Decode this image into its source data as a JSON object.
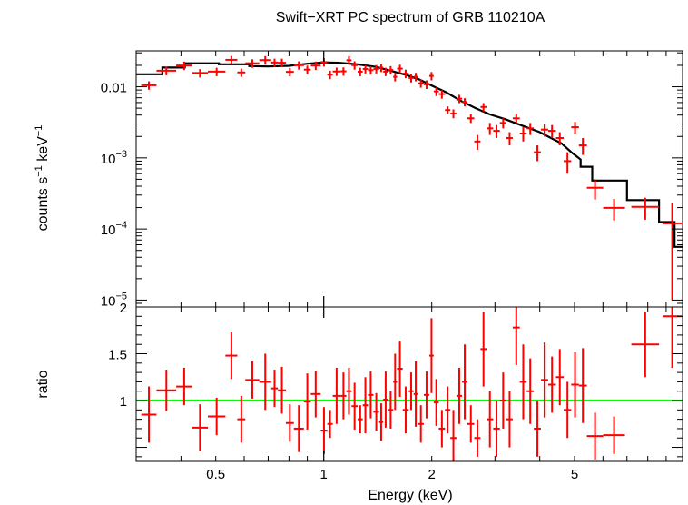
{
  "chart_data": {
    "type": "scatter",
    "title": "Swift−XRT PC spectrum of GRB 110210A",
    "xlabel": "Energy (keV)",
    "x_scale": "log",
    "xlim": [
      0.3,
      10
    ],
    "x_ticks": [
      {
        "value": 0.5,
        "label": "0.5"
      },
      {
        "value": 1,
        "label": "1"
      },
      {
        "value": 2,
        "label": "2"
      },
      {
        "value": 5,
        "label": "5"
      }
    ],
    "colors": {
      "data": "#ff0000",
      "model": "#000000",
      "unity": "#00ff00"
    },
    "panels": [
      {
        "name": "spectrum",
        "ylabel_parts": [
          {
            "text": "counts s",
            "sup": false
          },
          {
            "text": "−1",
            "sup": true
          },
          {
            "text": " keV",
            "sup": false
          },
          {
            "text": "−1",
            "sup": true
          }
        ],
        "y_scale": "log",
        "ylim": [
          8e-06,
          0.032
        ],
        "y_ticks": [
          {
            "value": 0.01,
            "base": "0.01",
            "exp": ""
          },
          {
            "value": 0.001,
            "base": "10",
            "exp": "−3"
          },
          {
            "value": 0.0001,
            "base": "10",
            "exp": "−4"
          },
          {
            "value": 1e-05,
            "base": "10",
            "exp": "−5"
          }
        ],
        "data": [
          [
            0.31,
            0.3419,
            0.0105,
            0.0014
          ],
          [
            0.3419,
            0.3879,
            0.0168,
            0.0023
          ],
          [
            0.3879,
            0.4297,
            0.0199,
            0.0027
          ],
          [
            0.4297,
            0.4753,
            0.0156,
            0.0021
          ],
          [
            0.4753,
            0.532,
            0.0163,
            0.0022
          ],
          [
            0.532,
            0.5742,
            0.0239,
            0.0032
          ],
          [
            0.5742,
            0.6044,
            0.0159,
            0.0021
          ],
          [
            0.6044,
            0.6612,
            0.0214,
            0.0029
          ],
          [
            0.6612,
            0.7137,
            0.0237,
            0.0032
          ],
          [
            0.7137,
            0.745,
            0.0219,
            0.0029
          ],
          [
            0.745,
            0.7841,
            0.0218,
            0.003
          ],
          [
            0.7841,
            0.8253,
            0.0162,
            0.0022
          ],
          [
            0.8253,
            0.8801,
            0.0201,
            0.0027
          ],
          [
            0.8801,
            0.92,
            0.0174,
            0.0024
          ],
          [
            0.92,
            0.9802,
            0.0199,
            0.0027
          ],
          [
            0.9802,
            1.0232,
            0.0222,
            0.003
          ],
          [
            1.0232,
            1.0593,
            0.0148,
            0.002
          ],
          [
            1.0593,
            1.1137,
            0.0164,
            0.0022
          ],
          [
            1.1137,
            1.1561,
            0.0165,
            0.0022
          ],
          [
            1.1561,
            1.195,
            0.0236,
            0.0032
          ],
          [
            1.195,
            1.243,
            0.0201,
            0.0027
          ],
          [
            1.243,
            1.2844,
            0.0163,
            0.0022
          ],
          [
            1.2844,
            1.3283,
            0.0178,
            0.0024
          ],
          [
            1.3283,
            1.3755,
            0.0171,
            0.0023
          ],
          [
            1.3755,
            1.4266,
            0.0178,
            0.0024
          ],
          [
            1.4266,
            1.4646,
            0.0186,
            0.0025
          ],
          [
            1.4646,
            1.5114,
            0.0163,
            0.0022
          ],
          [
            1.5114,
            1.5612,
            0.0172,
            0.0023
          ],
          [
            1.5612,
            1.6008,
            0.0138,
            0.0019
          ],
          [
            1.6008,
            1.6596,
            0.018,
            0.0024
          ],
          [
            1.6596,
            1.7247,
            0.0153,
            0.0021
          ],
          [
            1.7247,
            1.7799,
            0.0133,
            0.0018
          ],
          [
            1.7799,
            1.8299,
            0.0138,
            0.0019
          ],
          [
            1.8299,
            1.9009,
            0.0112,
            0.0015
          ],
          [
            1.9009,
            1.9682,
            0.0108,
            0.0015
          ],
          [
            1.9682,
            2.0258,
            0.0142,
            0.0019
          ],
          [
            2.0258,
            2.0922,
            0.0086,
            0.0012
          ],
          [
            2.0922,
            2.1773,
            0.0079,
            0.0011
          ],
          [
            2.1773,
            2.2536,
            0.0047,
            0.0006
          ],
          [
            2.2536,
            2.3432,
            0.0042,
            0.0006
          ],
          [
            2.3432,
            2.429,
            0.0068,
            0.0009
          ],
          [
            2.429,
            2.5146,
            0.0061,
            0.0008
          ],
          [
            2.5146,
            2.6269,
            0.0036,
            0.0005
          ],
          [
            2.6269,
            2.7343,
            0.0017,
            0.0004
          ],
          [
            2.7343,
            2.8422,
            0.0052,
            0.0007
          ],
          [
            2.8422,
            2.9671,
            0.0026,
            0.0005
          ],
          [
            2.9671,
            3.0959,
            0.0024,
            0.0005
          ],
          [
            3.0959,
            3.2304,
            0.0031,
            0.0005
          ],
          [
            3.2304,
            3.3627,
            0.0019,
            0.0004
          ],
          [
            3.3627,
            3.5185,
            0.0036,
            0.0005
          ],
          [
            3.5185,
            3.6778,
            0.0022,
            0.0005
          ],
          [
            3.6778,
            3.8501,
            0.0026,
            0.0005
          ],
          [
            3.8501,
            4.0294,
            0.0012,
            0.0003
          ],
          [
            4.0294,
            4.2215,
            0.0025,
            0.0005
          ],
          [
            4.2215,
            4.4367,
            0.0024,
            0.0005
          ],
          [
            4.4367,
            4.6627,
            0.0019,
            0.0004
          ],
          [
            4.6627,
            4.8946,
            0.0009,
            0.0003
          ],
          [
            4.8946,
            5.1411,
            0.0027,
            0.0005
          ],
          [
            5.1411,
            5.4118,
            0.0015,
            0.0004
          ],
          [
            5.4118,
            6.0102,
            0.00038,
            0.00012
          ],
          [
            6.0102,
            6.9102,
            0.000198,
            6.6e-05
          ],
          [
            7.2,
            8.6,
            0.000205,
            7e-05
          ],
          [
            8.8,
            9.95,
            0.00012,
            0.00011
          ]
        ],
        "model": [
          [
            0.3,
            0.015
          ],
          [
            0.355,
            0.015
          ],
          [
            0.355,
            0.0186
          ],
          [
            0.41,
            0.0186
          ],
          [
            0.41,
            0.0214
          ],
          [
            0.51,
            0.0214
          ],
          [
            0.51,
            0.0207
          ],
          [
            0.62,
            0.0207
          ],
          [
            0.62,
            0.0195
          ],
          [
            0.7,
            0.0193
          ],
          [
            0.8,
            0.0197
          ],
          [
            0.9,
            0.0211
          ],
          [
            1.0,
            0.022
          ],
          [
            1.1,
            0.0218
          ],
          [
            1.25,
            0.0206
          ],
          [
            1.4,
            0.019
          ],
          [
            1.55,
            0.0166
          ],
          [
            1.7,
            0.0146
          ],
          [
            1.85,
            0.0126
          ],
          [
            2.0,
            0.0104
          ],
          [
            2.2,
            0.0083
          ],
          [
            2.4,
            0.0064
          ],
          [
            2.65,
            0.005
          ],
          [
            2.9,
            0.0041
          ],
          [
            3.2,
            0.0035
          ],
          [
            3.6,
            0.0028
          ],
          [
            4.0,
            0.0023
          ],
          [
            4.3,
            0.0019
          ],
          [
            4.6,
            0.0016
          ],
          [
            4.9,
            0.0012
          ],
          [
            5.2,
            0.00095
          ],
          [
            5.2,
            0.00075
          ],
          [
            5.6,
            0.00075
          ],
          [
            5.6,
            0.00048
          ],
          [
            7.0,
            0.00048
          ],
          [
            7.0,
            0.000255
          ],
          [
            8.6,
            0.000255
          ],
          [
            8.6,
            0.000125
          ],
          [
            9.5,
            0.000125
          ],
          [
            9.5,
            5.6e-05
          ],
          [
            10.0,
            5.6e-05
          ]
        ]
      },
      {
        "name": "ratio",
        "ylabel": "ratio",
        "y_scale": "linear",
        "ylim": [
          0.35,
          2.0
        ],
        "y_ticks": [
          {
            "value": 1,
            "label": "1"
          },
          {
            "value": 1.5,
            "label": "1.5"
          },
          {
            "value": 2,
            "label": "2"
          }
        ],
        "reference_line": 1,
        "data": [
          [
            0.31,
            0.3419,
            0.85,
            0.3
          ],
          [
            0.3419,
            0.3879,
            1.11,
            0.22
          ],
          [
            0.3879,
            0.4297,
            1.15,
            0.2
          ],
          [
            0.4297,
            0.4753,
            0.71,
            0.25
          ],
          [
            0.4753,
            0.532,
            0.83,
            0.2
          ],
          [
            0.532,
            0.5742,
            1.48,
            0.25
          ],
          [
            0.5742,
            0.6044,
            0.8,
            0.25
          ],
          [
            0.6044,
            0.6612,
            1.22,
            0.2
          ],
          [
            0.6612,
            0.7137,
            1.2,
            0.3
          ],
          [
            0.7137,
            0.745,
            1.13,
            0.2
          ],
          [
            0.745,
            0.7841,
            1.11,
            0.25
          ],
          [
            0.7841,
            0.8253,
            0.76,
            0.2
          ],
          [
            0.8253,
            0.8801,
            0.7,
            0.25
          ],
          [
            0.8801,
            0.92,
            0.99,
            0.3
          ],
          [
            0.92,
            0.9802,
            1.07,
            0.25
          ],
          [
            0.9802,
            1.0232,
            0.68,
            0.25
          ],
          [
            1.0232,
            1.0593,
            0.75,
            0.15
          ],
          [
            1.0593,
            1.1137,
            1.05,
            0.3
          ],
          [
            1.1137,
            1.1561,
            1.05,
            0.25
          ],
          [
            1.1561,
            1.195,
            1.1,
            0.25
          ],
          [
            1.195,
            1.243,
            0.94,
            0.25
          ],
          [
            1.243,
            1.2844,
            0.8,
            0.15
          ],
          [
            1.2844,
            1.3283,
            0.95,
            0.3
          ],
          [
            1.3283,
            1.3755,
            1.06,
            0.25
          ],
          [
            1.3755,
            1.4266,
            0.88,
            0.2
          ],
          [
            1.4266,
            1.4646,
            0.77,
            0.2
          ],
          [
            1.4646,
            1.5114,
            1.01,
            0.3
          ],
          [
            1.5114,
            1.5612,
            0.9,
            0.2
          ],
          [
            1.5612,
            1.6008,
            1.2,
            0.3
          ],
          [
            1.6008,
            1.6596,
            1.34,
            0.3
          ],
          [
            1.6596,
            1.7247,
            0.9,
            0.25
          ],
          [
            1.7247,
            1.7799,
            1.1,
            0.2
          ],
          [
            1.7799,
            1.8299,
            1.07,
            0.35
          ],
          [
            1.8299,
            1.9009,
            0.75,
            0.2
          ],
          [
            1.9009,
            1.9682,
            1.06,
            0.25
          ],
          [
            1.9682,
            2.0258,
            1.48,
            0.4
          ],
          [
            2.0258,
            2.0922,
            0.98,
            0.25
          ],
          [
            2.0922,
            2.1773,
            0.7,
            0.2
          ],
          [
            2.1773,
            2.2536,
            0.9,
            0.25
          ],
          [
            2.2536,
            2.3432,
            0.6,
            0.3
          ],
          [
            2.3432,
            2.429,
            1.05,
            0.3
          ],
          [
            2.429,
            2.5146,
            1.2,
            0.4
          ],
          [
            2.5146,
            2.6269,
            0.75,
            0.2
          ],
          [
            2.6269,
            2.7343,
            0.6,
            0.2
          ],
          [
            2.7343,
            2.8422,
            1.55,
            0.4
          ],
          [
            2.8422,
            2.9671,
            0.8,
            0.3
          ],
          [
            2.9671,
            3.0959,
            0.7,
            0.3
          ],
          [
            3.0959,
            3.2304,
            1.0,
            0.3
          ],
          [
            3.2304,
            3.3627,
            0.8,
            0.3
          ],
          [
            3.3627,
            3.5185,
            1.78,
            0.4
          ],
          [
            3.5185,
            3.6778,
            1.2,
            0.4
          ],
          [
            3.6778,
            3.8501,
            1.1,
            0.35
          ],
          [
            3.8501,
            4.0294,
            0.7,
            0.3
          ],
          [
            4.0294,
            4.2215,
            1.22,
            0.4
          ],
          [
            4.2215,
            4.4367,
            1.17,
            0.3
          ],
          [
            4.4367,
            4.6627,
            1.25,
            0.3
          ],
          [
            4.6627,
            4.8946,
            0.9,
            0.3
          ],
          [
            4.8946,
            5.1411,
            1.17,
            0.35
          ],
          [
            5.1411,
            5.4118,
            1.16,
            0.4
          ],
          [
            5.4118,
            6.0102,
            0.62,
            0.25
          ],
          [
            6.0102,
            6.9102,
            0.63,
            0.2
          ],
          [
            7.2,
            8.6,
            1.6,
            0.35
          ],
          [
            8.8,
            9.95,
            1.9,
            0.55
          ]
        ]
      }
    ]
  }
}
